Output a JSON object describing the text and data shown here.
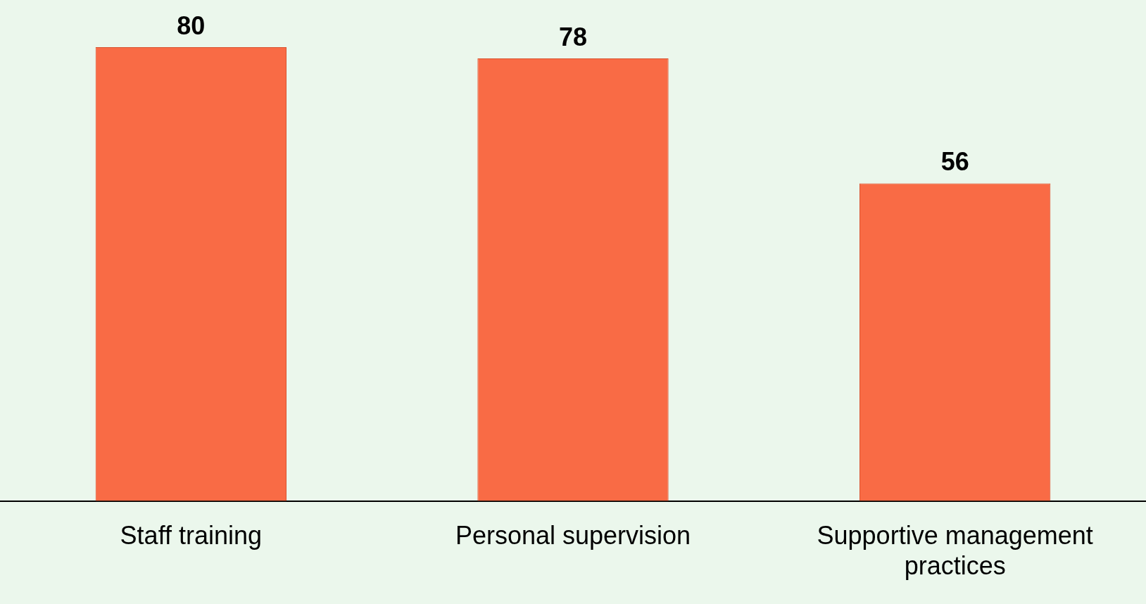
{
  "chart_data": {
    "type": "bar",
    "categories": [
      "Staff training",
      "Personal supervision",
      "Supportive management practices"
    ],
    "values": [
      80,
      78,
      56
    ],
    "color": "#f96b45",
    "data_labels": true,
    "tick_labels": "x",
    "grid": false,
    "legend": false
  }
}
